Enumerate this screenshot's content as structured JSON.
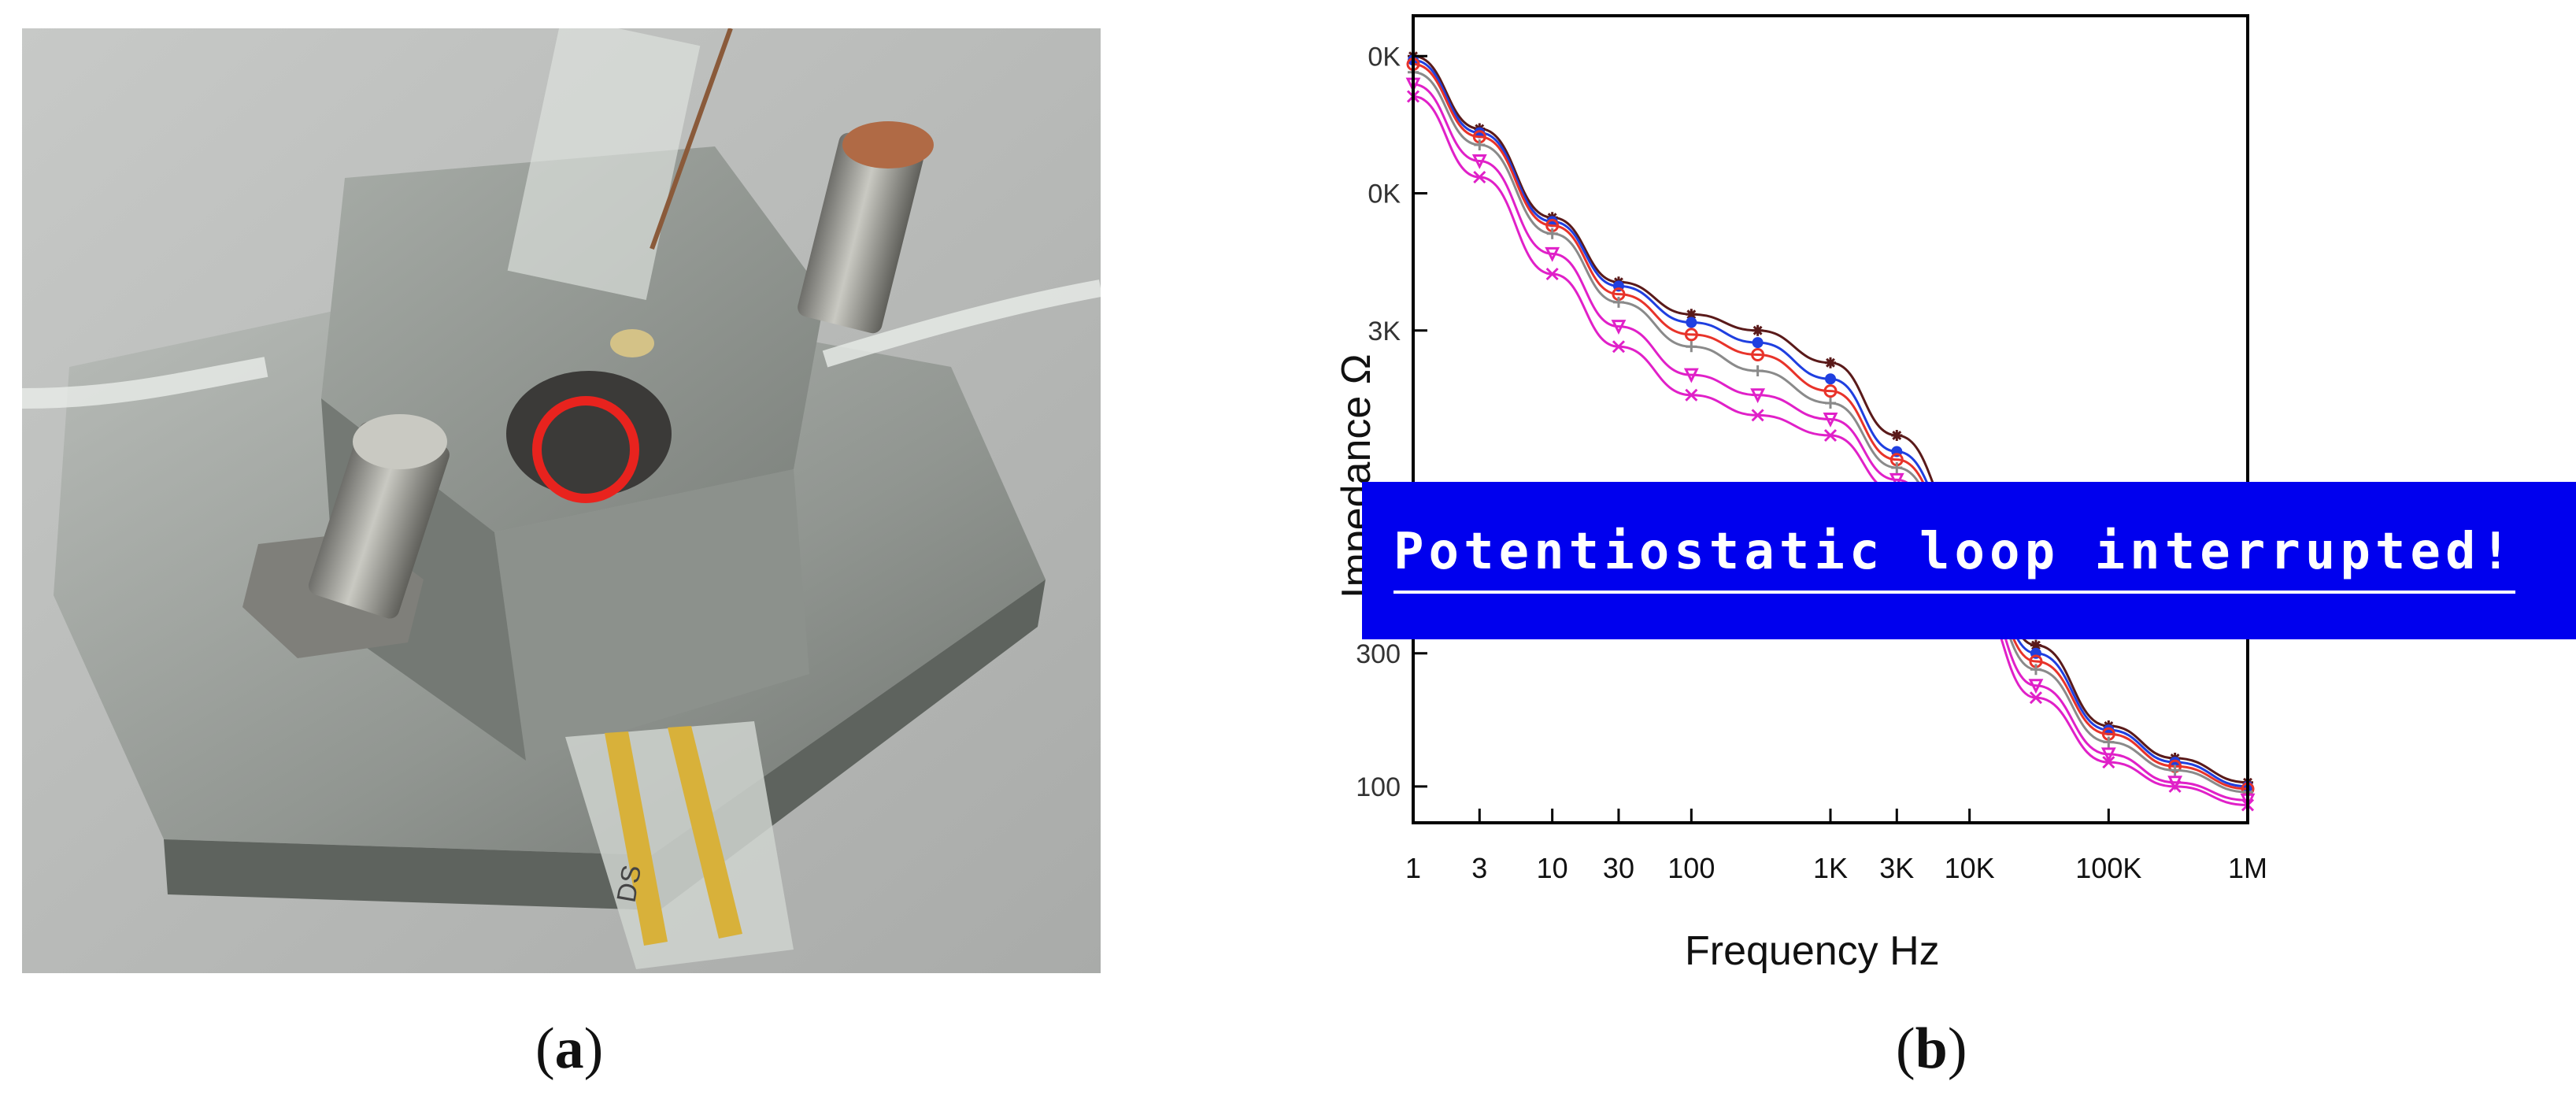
{
  "captions": {
    "a_letter": "a",
    "b_letter": "b"
  },
  "photo": {
    "colors": {
      "background": "#b9bbb9",
      "acrylic": "#9fa4a0",
      "gold": "#d8b13a",
      "highlight_ring": "#e8231e",
      "copper": "#b06a45"
    },
    "label_on_substrate": "DS"
  },
  "banner": {
    "text": "Potentiostatic loop interrupted!",
    "bg": "#0000ee",
    "fg": "#ffffff"
  },
  "chart_data": {
    "type": "line",
    "xlabel": "Frequency Hz",
    "ylabel": "Impedance Ω",
    "x_scale": "log",
    "xlim": [
      1,
      1000000
    ],
    "y_scale": "log",
    "x_ticks": [
      {
        "v": 1,
        "label": "1"
      },
      {
        "v": 3,
        "label": "3"
      },
      {
        "v": 10,
        "label": "10"
      },
      {
        "v": 30,
        "label": "30"
      },
      {
        "v": 100,
        "label": "100"
      },
      {
        "v": 1000,
        "label": "1K"
      },
      {
        "v": 3000,
        "label": "3K"
      },
      {
        "v": 10000,
        "label": "10K"
      },
      {
        "v": 100000,
        "label": "100K"
      },
      {
        "v": 1000000,
        "label": "1M"
      }
    ],
    "y_tick_labels": [
      {
        "label": "0K",
        "level": 0.05
      },
      {
        "label": "0K",
        "level": 0.22
      },
      {
        "label": "3K",
        "level": 0.39
      },
      {
        "label": "300",
        "level": 0.79
      },
      {
        "label": "100",
        "level": 0.955
      }
    ],
    "grid": false,
    "series": [
      {
        "color": "#5a1a1a",
        "marker": "star",
        "x": [
          1,
          3,
          10,
          30,
          100,
          300,
          1000,
          3000,
          10000,
          30000,
          100000,
          300000,
          1000000
        ],
        "level": [
          0.05,
          0.14,
          0.25,
          0.33,
          0.37,
          0.39,
          0.43,
          0.52,
          0.64,
          0.78,
          0.88,
          0.92,
          0.95
        ]
      },
      {
        "color": "#1f3fe0",
        "marker": "dot",
        "x": [
          1,
          3,
          10,
          30,
          100,
          300,
          1000,
          3000,
          10000,
          30000,
          100000,
          300000,
          1000000
        ],
        "level": [
          0.055,
          0.145,
          0.255,
          0.335,
          0.38,
          0.405,
          0.45,
          0.54,
          0.655,
          0.79,
          0.885,
          0.925,
          0.955
        ]
      },
      {
        "color": "#e8332a",
        "marker": "circle",
        "x": [
          1,
          3,
          10,
          30,
          100,
          300,
          1000,
          3000,
          10000,
          30000,
          100000,
          300000,
          1000000
        ],
        "level": [
          0.06,
          0.15,
          0.26,
          0.345,
          0.395,
          0.42,
          0.465,
          0.55,
          0.665,
          0.8,
          0.89,
          0.93,
          0.958
        ]
      },
      {
        "color": "#8a8a8a",
        "marker": "plus",
        "x": [
          1,
          3,
          10,
          30,
          100,
          300,
          1000,
          3000,
          10000,
          30000,
          100000,
          300000,
          1000000
        ],
        "level": [
          0.07,
          0.16,
          0.27,
          0.355,
          0.41,
          0.44,
          0.48,
          0.56,
          0.675,
          0.81,
          0.9,
          0.935,
          0.962
        ]
      },
      {
        "color": "#e020c8",
        "marker": "triangle",
        "x": [
          1,
          3,
          10,
          30,
          100,
          300,
          1000,
          3000,
          10000,
          30000,
          100000,
          300000,
          1000000
        ],
        "level": [
          0.085,
          0.18,
          0.295,
          0.385,
          0.445,
          0.47,
          0.5,
          0.575,
          0.69,
          0.83,
          0.915,
          0.95,
          0.972
        ]
      },
      {
        "color": "#e020c8",
        "marker": "cross",
        "x": [
          1,
          3,
          10,
          30,
          100,
          300,
          1000,
          3000,
          10000,
          30000,
          100000,
          300000,
          1000000
        ],
        "level": [
          0.1,
          0.2,
          0.32,
          0.41,
          0.47,
          0.495,
          0.52,
          0.59,
          0.71,
          0.845,
          0.925,
          0.955,
          0.978
        ]
      }
    ]
  }
}
